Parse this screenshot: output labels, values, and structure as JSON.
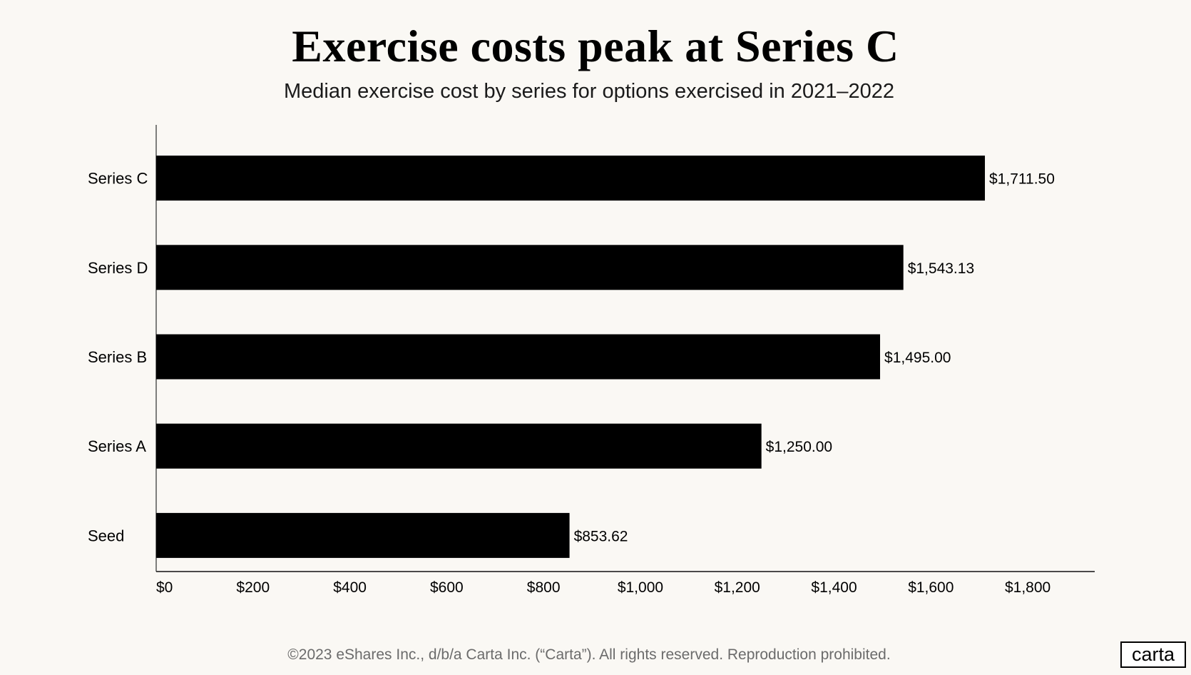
{
  "chart_data": {
    "type": "bar",
    "orientation": "horizontal",
    "title": "Exercise costs peak at Series C",
    "subtitle": "Median exercise cost by series  for options exercised in 2021–2022",
    "categories": [
      "Series C",
      "Series D",
      "Series B",
      "Series A",
      "Seed"
    ],
    "values": [
      1711.5,
      1543.13,
      1495.0,
      1250.0,
      853.62
    ],
    "data_labels": [
      "$1,711.50",
      "$1,543.13",
      "$1,495.00",
      "$1,250.00",
      "$853.62"
    ],
    "xticks": [
      0,
      200,
      400,
      600,
      800,
      1000,
      1200,
      1400,
      1600,
      1800
    ],
    "xtick_labels": [
      "$0",
      "$200",
      "$400",
      "$600",
      "$800",
      "$1,000",
      "$1,200",
      "$1,400",
      "$1,600",
      "$1,800"
    ],
    "xlim": [
      0,
      1935
    ],
    "xlabel": "",
    "ylabel": "",
    "grid": false,
    "bar_color": "#000000"
  },
  "footer": "©2023 eShares Inc., d/b/a Carta Inc. (“Carta”). All rights reserved. Reproduction prohibited.",
  "logo": "carta"
}
